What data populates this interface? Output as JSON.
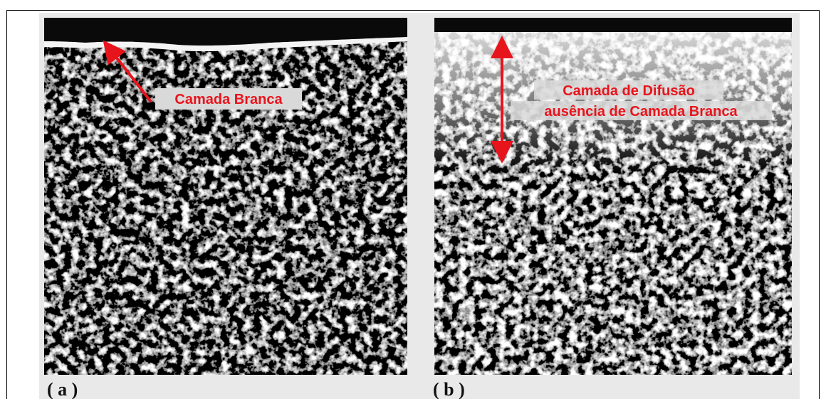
{
  "panels": [
    {
      "label": "( a )",
      "annotations": [
        "Camada Branca"
      ]
    },
    {
      "label": "( b )",
      "annotations": [
        "Camada de Difusão",
        "ausência de Camada Branca"
      ]
    }
  ]
}
